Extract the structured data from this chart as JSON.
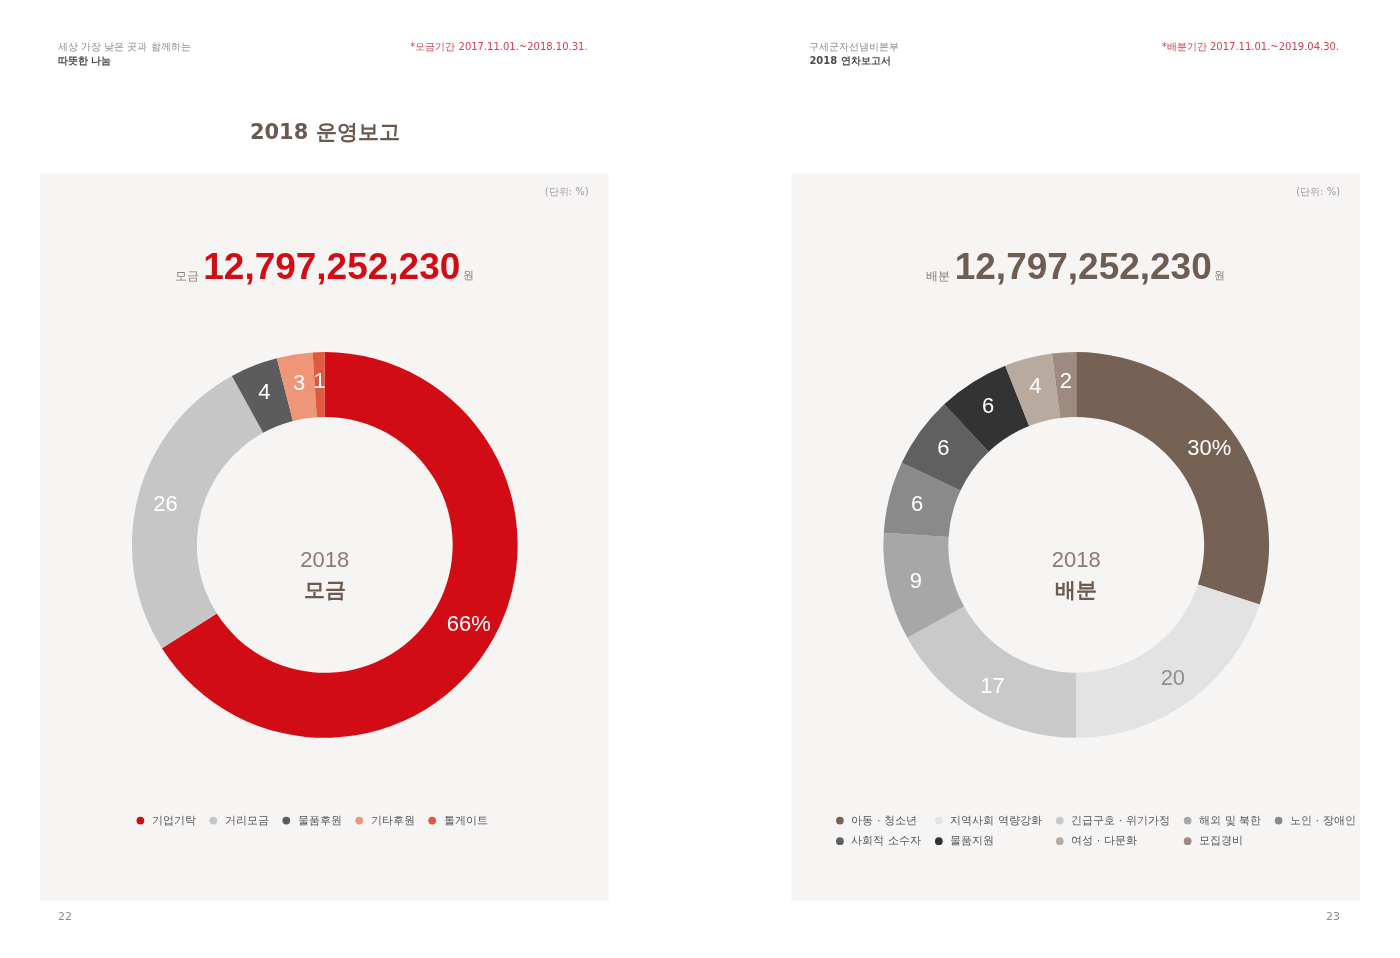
{
  "chart_data": [
    {
      "type": "donut",
      "title": "2018 운영보고",
      "categories": [
        "기업기탁",
        "거리모금",
        "물품후원",
        "기타후원",
        "톨게이트"
      ],
      "values": [
        66,
        26,
        4,
        3,
        1
      ],
      "colors": [
        "#d10c15",
        "#c6c6c6",
        "#5c5c5c",
        "#ef9679",
        "#e0593f"
      ],
      "value_labels": [
        "66%",
        "26",
        "4",
        "3",
        "1"
      ],
      "legend": "bottom",
      "annotations": [
        "세상 가장 낮은 곳과 함께하는",
        "따뜻한 나눔",
        "*모금기간 2017.11.01.~2018.10.31.",
        "(단위: %)",
        "모금",
        "12,797,252,230",
        "원",
        "2018",
        "모금",
        "22"
      ]
    },
    {
      "type": "donut",
      "categories": [
        "아동 · 청소년",
        "지역사회 역량강화",
        "긴급구호 · 위기가정",
        "해외 및 북한",
        "노인 · 장애인",
        "사회적 소수자",
        "물품지원",
        "여성 · 다문화",
        "모집경비"
      ],
      "values": [
        30,
        20,
        17,
        9,
        6,
        6,
        6,
        4,
        2
      ],
      "colors": [
        "#766155",
        "#e3e3e3",
        "#c9c9c9",
        "#a7a7a7",
        "#8a8a8a",
        "#606060",
        "#333333",
        "#b8aa9f",
        "#9e8a7e"
      ],
      "value_labels": [
        "30%",
        "20",
        "17",
        "9",
        "6",
        "6",
        "6",
        "4",
        "2"
      ],
      "legend": "bottom",
      "annotations": [
        "구세군자선냄비본부",
        "2018 연차보고서",
        "*배분기간 2017.11.01.~2019.04.30.",
        "(단위: %)",
        "배분",
        "12,797,252,230",
        "원",
        "2018",
        "배분",
        "23"
      ]
    }
  ]
}
